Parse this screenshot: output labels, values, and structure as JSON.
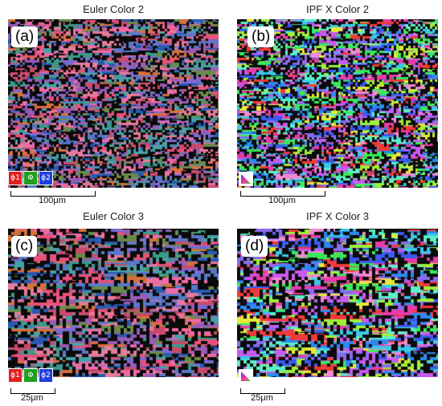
{
  "panels": [
    {
      "id": "a",
      "title": "Euler Color 2",
      "label": "(a)",
      "scale": "100μm",
      "legend_type": "euler",
      "grain": "fine",
      "palette": "euler",
      "legend_items": [
        {
          "symbol": "ϕ1",
          "color": "#e02020"
        },
        {
          "symbol": "Φ",
          "color": "#20a020"
        },
        {
          "symbol": "ϕ2",
          "color": "#2040e0"
        }
      ]
    },
    {
      "id": "b",
      "title": "IPF X Color 2",
      "label": "(b)",
      "scale": "100μm",
      "legend_type": "ipf",
      "grain": "fine",
      "palette": "ipf"
    },
    {
      "id": "c",
      "title": "Euler Color 3",
      "label": "(c)",
      "scale": "25μm",
      "legend_type": "euler",
      "grain": "coarse",
      "palette": "euler",
      "legend_items": [
        {
          "symbol": "ϕ1",
          "color": "#e02020"
        },
        {
          "symbol": "Φ",
          "color": "#20a020"
        },
        {
          "symbol": "ϕ2",
          "color": "#2040e0"
        }
      ]
    },
    {
      "id": "d",
      "title": "IPF X Color 3",
      "label": "(d)",
      "scale": "25μm",
      "legend_type": "ipf",
      "grain": "coarse",
      "palette": "ipf"
    }
  ],
  "colors": {
    "euler_palette": [
      "#e8507a",
      "#f06aa8",
      "#3a9a8a",
      "#5a78c8",
      "#9a5ab8",
      "#d8703a",
      "#c84a6a",
      "#4aa0a8",
      "#7a6ad0",
      "#2a5ab0",
      "#e87a9a",
      "#6a8a4a"
    ],
    "ipf_palette": [
      "#e83aa8",
      "#8a6af0",
      "#3ac8e8",
      "#3ae85a",
      "#e8e83a",
      "#3a5af0",
      "#f03a3a",
      "#c85af0",
      "#5af0c8",
      "#f08ad0",
      "#2a8af0",
      "#a0f03a"
    ],
    "noise": "#0a0a0a"
  }
}
